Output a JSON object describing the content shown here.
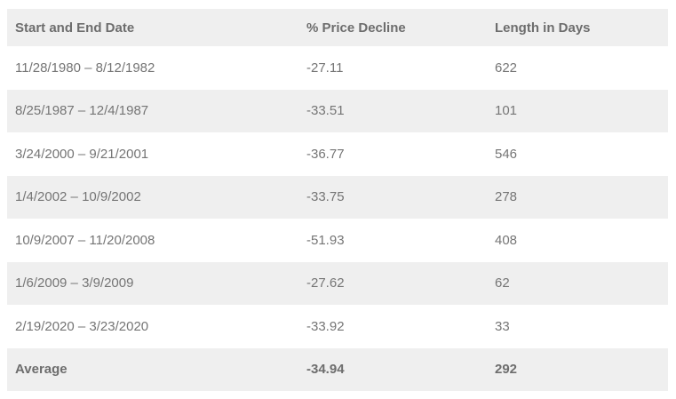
{
  "colors": {
    "page_bg": "#ffffff",
    "stripe_bg": "#efefef",
    "header_bg": "#efefef",
    "body_text": "#757575",
    "header_text": "#6d6d6d"
  },
  "table": {
    "columns": [
      "Start and End Date",
      "% Price Decline",
      "Length in Days"
    ],
    "rows": [
      [
        "11/28/1980 – 8/12/1982",
        "-27.11",
        "622"
      ],
      [
        "8/25/1987 – 12/4/1987",
        "-33.51",
        "101"
      ],
      [
        "3/24/2000 – 9/21/2001",
        "-36.77",
        "546"
      ],
      [
        "1/4/2002 – 10/9/2002",
        "-33.75",
        "278"
      ],
      [
        "10/9/2007 – 11/20/2008",
        "-51.93",
        "408"
      ],
      [
        "1/6/2009 – 3/9/2009",
        "-27.62",
        "62"
      ],
      [
        "2/19/2020 – 3/23/2020",
        "-33.92",
        "33"
      ]
    ],
    "footer": [
      "Average",
      "-34.94",
      "292"
    ]
  },
  "chart_data": {
    "type": "table",
    "columns": [
      "Start and End Date",
      "% Price Decline",
      "Length in Days"
    ],
    "rows": [
      {
        "start_end_date": "11/28/1980 – 8/12/1982",
        "price_decline_pct": -27.11,
        "length_in_days": 622
      },
      {
        "start_end_date": "8/25/1987 – 12/4/1987",
        "price_decline_pct": -33.51,
        "length_in_days": 101
      },
      {
        "start_end_date": "3/24/2000 – 9/21/2001",
        "price_decline_pct": -36.77,
        "length_in_days": 546
      },
      {
        "start_end_date": "1/4/2002 – 10/9/2002",
        "price_decline_pct": -33.75,
        "length_in_days": 278
      },
      {
        "start_end_date": "10/9/2007 – 11/20/2008",
        "price_decline_pct": -51.93,
        "length_in_days": 408
      },
      {
        "start_end_date": "1/6/2009 – 3/9/2009",
        "price_decline_pct": -27.62,
        "length_in_days": 62
      },
      {
        "start_end_date": "2/19/2020 – 3/23/2020",
        "price_decline_pct": -33.92,
        "length_in_days": 33
      }
    ],
    "summary_row": {
      "label": "Average",
      "price_decline_pct": -34.94,
      "length_in_days": 292
    }
  }
}
